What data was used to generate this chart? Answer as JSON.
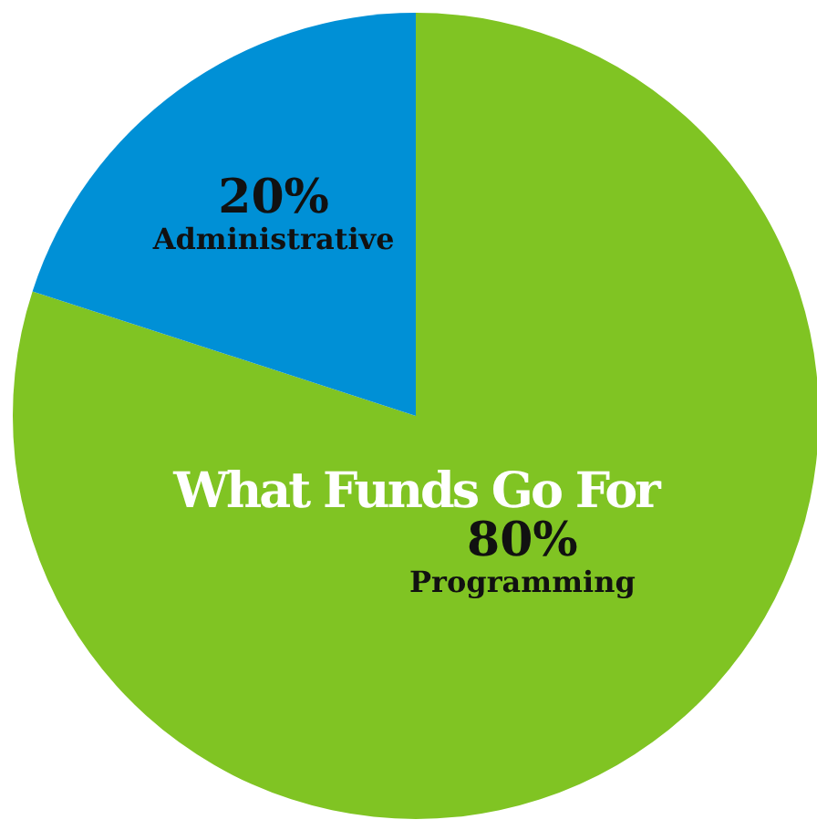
{
  "chart_data": {
    "type": "pie",
    "title": "What Funds Go For",
    "categories": [
      "Programming",
      "Administrative"
    ],
    "values": [
      80,
      20
    ],
    "colors": [
      "#80c423",
      "#0090d6"
    ],
    "value_labels": [
      "80%",
      "20%"
    ]
  }
}
